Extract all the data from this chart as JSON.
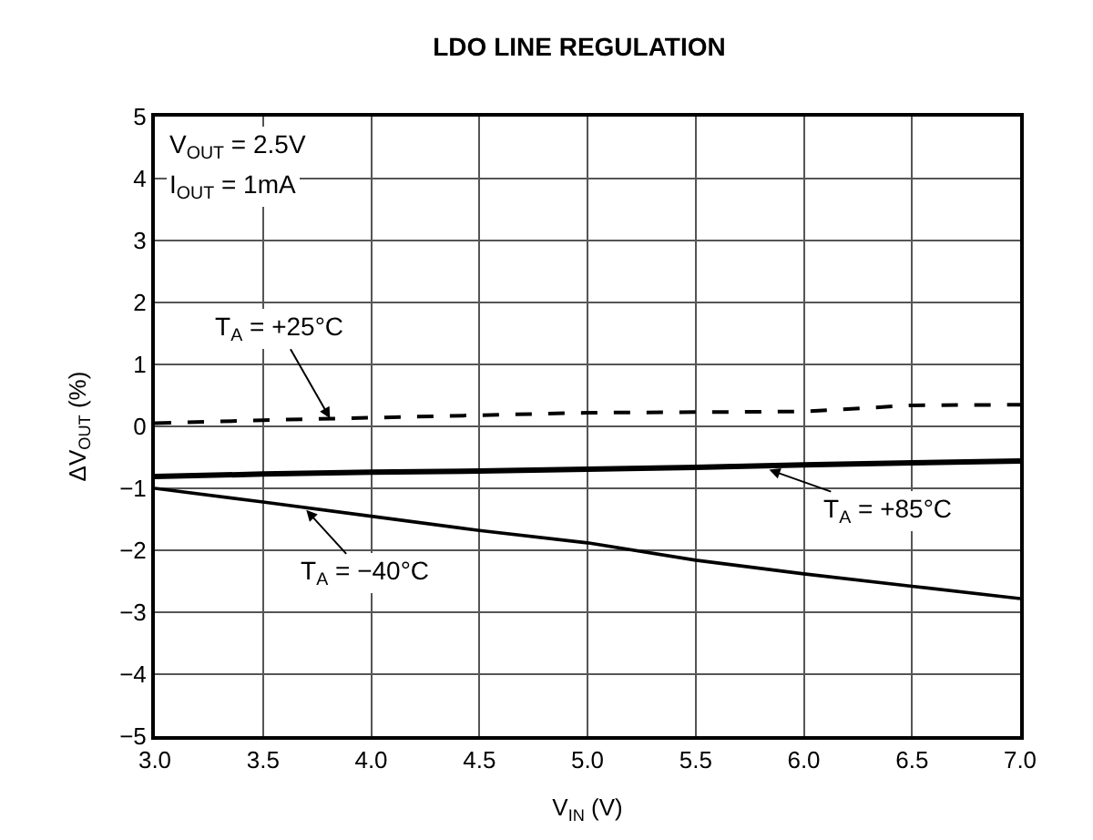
{
  "chart_data": {
    "type": "line",
    "title": "LDO LINE REGULATION",
    "xlabel": "V$_{IN}$ (V)",
    "ylabel": "ΔV$_{OUT}$ (%)",
    "x": [
      3.0,
      3.5,
      4.0,
      4.5,
      5.0,
      5.5,
      6.0,
      6.5,
      7.0
    ],
    "series": [
      {
        "color": "#000000",
        "line_style": "dashed",
        "values": [
          0.05,
          0.1,
          0.14,
          0.18,
          0.22,
          0.23,
          0.24,
          0.34,
          0.35
        ]
      },
      {
        "color": "#000000",
        "line_style": "solid",
        "values": [
          -0.81,
          -0.77,
          -0.74,
          -0.72,
          -0.69,
          -0.66,
          -0.62,
          -0.59,
          -0.56
        ]
      },
      {
        "color": "#000000",
        "line_style": "solid",
        "values": [
          -1.0,
          -1.22,
          -1.45,
          -1.68,
          -1.88,
          -2.16,
          -2.38,
          -2.58,
          -2.78
        ]
      }
    ],
    "xlim": [
      3.0,
      7.0
    ],
    "xticks": [
      {
        "value": 3.0,
        "label": "3.0"
      },
      3.5,
      {
        "value": 4.0,
        "label": "4.0"
      },
      4.5,
      {
        "value": 5.0,
        "label": "5.0"
      },
      5.5,
      {
        "value": 6.0,
        "label": "6.0"
      },
      6.5,
      {
        "value": 7.0,
        "label": "7.0"
      }
    ],
    "ylim": [
      -5,
      5
    ],
    "yticks": [
      {
        "value": -5,
        "label": "−5"
      },
      {
        "value": -4,
        "label": "−4"
      },
      {
        "value": -3,
        "label": "−3"
      },
      {
        "value": -2,
        "label": "−2"
      },
      {
        "value": -1,
        "label": "−1"
      },
      0,
      1,
      2,
      3,
      4,
      5
    ],
    "grid": true,
    "marker": "none",
    "annotations": [
      "V$_{OUT}$ = 2.5V",
      "I$_{OUT}$ = 1mA",
      {
        "text": "T$_{A}$ = +25°C",
        "x": 3.81,
        "y": 0.13
      },
      {
        "text": "T$_{A}$ = +85°C",
        "x": 5.84,
        "y": -0.7
      },
      {
        "text": "T$_{A}$ = −40°C",
        "x": 3.7,
        "y": -1.35
      }
    ]
  }
}
